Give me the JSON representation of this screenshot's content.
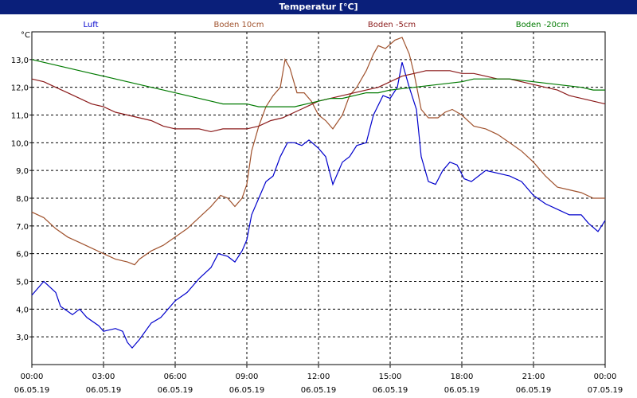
{
  "window": {
    "title": "Temperatur [°C]"
  },
  "chart_data": {
    "type": "line",
    "title": "Temperatur [°C]",
    "ylabel": "°C",
    "ylim": [
      2.0,
      14.0
    ],
    "yticks": [
      3.0,
      4.0,
      5.0,
      6.0,
      7.0,
      8.0,
      9.0,
      10.0,
      11.0,
      12.0,
      13.0
    ],
    "ytick_labels": [
      "3,0",
      "4,0",
      "5,0",
      "6,0",
      "7,0",
      "8,0",
      "9,0",
      "10,0",
      "11,0",
      "12,0",
      "13,0"
    ],
    "xlim": [
      0,
      24
    ],
    "xticks": [
      {
        "x": 0,
        "time": "00:00",
        "date": "06.05.19"
      },
      {
        "x": 3,
        "time": "03:00",
        "date": "06.05.19"
      },
      {
        "x": 6,
        "time": "06:00",
        "date": "06.05.19"
      },
      {
        "x": 9,
        "time": "09:00",
        "date": "06.05.19"
      },
      {
        "x": 12,
        "time": "12:00",
        "date": "06.05.19"
      },
      {
        "x": 15,
        "time": "15:00",
        "date": "06.05.19"
      },
      {
        "x": 18,
        "time": "18:00",
        "date": "06.05.19"
      },
      {
        "x": 21,
        "time": "21:00",
        "date": "06.05.19"
      },
      {
        "x": 24,
        "time": "00:00",
        "date": "07.05.19"
      }
    ],
    "grid": true,
    "legend_position": "top",
    "series": [
      {
        "name": "Luft",
        "color": "#0000cc",
        "points": [
          [
            0,
            4.5
          ],
          [
            0.5,
            5.0
          ],
          [
            1,
            4.6
          ],
          [
            1.2,
            4.1
          ],
          [
            1.7,
            3.8
          ],
          [
            2.0,
            4.0
          ],
          [
            2.3,
            3.7
          ],
          [
            2.8,
            3.4
          ],
          [
            3.0,
            3.2
          ],
          [
            3.5,
            3.3
          ],
          [
            3.8,
            3.2
          ],
          [
            4.0,
            2.8
          ],
          [
            4.2,
            2.6
          ],
          [
            4.5,
            2.9
          ],
          [
            5.0,
            3.5
          ],
          [
            5.4,
            3.7
          ],
          [
            6.0,
            4.3
          ],
          [
            6.5,
            4.6
          ],
          [
            7.0,
            5.1
          ],
          [
            7.5,
            5.5
          ],
          [
            7.8,
            6.0
          ],
          [
            8.2,
            5.9
          ],
          [
            8.5,
            5.7
          ],
          [
            8.8,
            6.1
          ],
          [
            9.0,
            6.5
          ],
          [
            9.2,
            7.4
          ],
          [
            9.5,
            8.0
          ],
          [
            9.8,
            8.6
          ],
          [
            10.1,
            8.8
          ],
          [
            10.4,
            9.5
          ],
          [
            10.7,
            10.0
          ],
          [
            11.0,
            10.0
          ],
          [
            11.3,
            9.9
          ],
          [
            11.6,
            10.1
          ],
          [
            12.0,
            9.8
          ],
          [
            12.3,
            9.5
          ],
          [
            12.6,
            8.5
          ],
          [
            13.0,
            9.3
          ],
          [
            13.3,
            9.5
          ],
          [
            13.6,
            9.9
          ],
          [
            14.0,
            10.0
          ],
          [
            14.3,
            11.0
          ],
          [
            14.7,
            11.7
          ],
          [
            15.0,
            11.6
          ],
          [
            15.3,
            12.0
          ],
          [
            15.5,
            12.9
          ],
          [
            15.8,
            12.0
          ],
          [
            16.1,
            11.2
          ],
          [
            16.3,
            9.5
          ],
          [
            16.6,
            8.6
          ],
          [
            16.9,
            8.5
          ],
          [
            17.2,
            9.0
          ],
          [
            17.5,
            9.3
          ],
          [
            17.8,
            9.2
          ],
          [
            18.1,
            8.7
          ],
          [
            18.4,
            8.6
          ],
          [
            18.7,
            8.8
          ],
          [
            19.0,
            9.0
          ],
          [
            19.5,
            8.9
          ],
          [
            20.0,
            8.8
          ],
          [
            20.5,
            8.6
          ],
          [
            21.0,
            8.1
          ],
          [
            21.5,
            7.8
          ],
          [
            22.0,
            7.6
          ],
          [
            22.5,
            7.4
          ],
          [
            23.0,
            7.4
          ],
          [
            23.3,
            7.1
          ],
          [
            23.7,
            6.8
          ],
          [
            24.0,
            7.2
          ]
        ]
      },
      {
        "name": "Boden 10cm",
        "color": "#a0522d",
        "points": [
          [
            0,
            7.5
          ],
          [
            0.5,
            7.3
          ],
          [
            1.0,
            6.9
          ],
          [
            1.5,
            6.6
          ],
          [
            2.0,
            6.4
          ],
          [
            2.5,
            6.2
          ],
          [
            3.0,
            6.0
          ],
          [
            3.5,
            5.8
          ],
          [
            4.0,
            5.7
          ],
          [
            4.3,
            5.6
          ],
          [
            4.5,
            5.8
          ],
          [
            5.0,
            6.1
          ],
          [
            5.5,
            6.3
          ],
          [
            6.0,
            6.6
          ],
          [
            6.5,
            6.9
          ],
          [
            7.0,
            7.3
          ],
          [
            7.5,
            7.7
          ],
          [
            7.9,
            8.1
          ],
          [
            8.2,
            8.0
          ],
          [
            8.5,
            7.7
          ],
          [
            8.8,
            8.0
          ],
          [
            9.0,
            8.5
          ],
          [
            9.2,
            9.7
          ],
          [
            9.5,
            10.6
          ],
          [
            9.8,
            11.3
          ],
          [
            10.1,
            11.7
          ],
          [
            10.4,
            12.0
          ],
          [
            10.6,
            13.0
          ],
          [
            10.8,
            12.7
          ],
          [
            11.1,
            11.8
          ],
          [
            11.4,
            11.8
          ],
          [
            11.7,
            11.5
          ],
          [
            12.0,
            11.0
          ],
          [
            12.3,
            10.8
          ],
          [
            12.6,
            10.5
          ],
          [
            13.0,
            11.0
          ],
          [
            13.3,
            11.7
          ],
          [
            13.6,
            12.0
          ],
          [
            14.0,
            12.6
          ],
          [
            14.3,
            13.2
          ],
          [
            14.5,
            13.5
          ],
          [
            14.8,
            13.4
          ],
          [
            15.2,
            13.7
          ],
          [
            15.5,
            13.8
          ],
          [
            15.8,
            13.2
          ],
          [
            16.0,
            12.5
          ],
          [
            16.3,
            11.2
          ],
          [
            16.6,
            10.9
          ],
          [
            17.0,
            10.9
          ],
          [
            17.3,
            11.1
          ],
          [
            17.6,
            11.2
          ],
          [
            18.0,
            11.0
          ],
          [
            18.5,
            10.6
          ],
          [
            19.0,
            10.5
          ],
          [
            19.5,
            10.3
          ],
          [
            20.0,
            10.0
          ],
          [
            20.5,
            9.7
          ],
          [
            21.0,
            9.3
          ],
          [
            21.5,
            8.8
          ],
          [
            22.0,
            8.4
          ],
          [
            22.5,
            8.3
          ],
          [
            23.0,
            8.2
          ],
          [
            23.5,
            8.0
          ],
          [
            24.0,
            8.0
          ]
        ]
      },
      {
        "name": "Boden -5cm",
        "color": "#8b1a1a",
        "points": [
          [
            0,
            12.3
          ],
          [
            0.5,
            12.2
          ],
          [
            1.0,
            12.0
          ],
          [
            1.5,
            11.8
          ],
          [
            2.0,
            11.6
          ],
          [
            2.5,
            11.4
          ],
          [
            3.0,
            11.3
          ],
          [
            3.5,
            11.1
          ],
          [
            4.0,
            11.0
          ],
          [
            4.5,
            10.9
          ],
          [
            5.0,
            10.8
          ],
          [
            5.5,
            10.6
          ],
          [
            6.0,
            10.5
          ],
          [
            7.0,
            10.5
          ],
          [
            7.5,
            10.4
          ],
          [
            8.0,
            10.5
          ],
          [
            9.0,
            10.5
          ],
          [
            9.5,
            10.6
          ],
          [
            10.0,
            10.8
          ],
          [
            10.5,
            10.9
          ],
          [
            11.0,
            11.1
          ],
          [
            11.5,
            11.3
          ],
          [
            12.0,
            11.5
          ],
          [
            12.5,
            11.6
          ],
          [
            13.0,
            11.7
          ],
          [
            13.5,
            11.8
          ],
          [
            14.0,
            11.9
          ],
          [
            14.5,
            12.0
          ],
          [
            15.0,
            12.2
          ],
          [
            15.5,
            12.4
          ],
          [
            16.0,
            12.5
          ],
          [
            16.5,
            12.6
          ],
          [
            17.0,
            12.6
          ],
          [
            17.5,
            12.6
          ],
          [
            18.0,
            12.5
          ],
          [
            18.5,
            12.5
          ],
          [
            19.0,
            12.4
          ],
          [
            19.5,
            12.3
          ],
          [
            20.0,
            12.3
          ],
          [
            20.5,
            12.2
          ],
          [
            21.0,
            12.1
          ],
          [
            21.5,
            12.0
          ],
          [
            22.0,
            11.9
          ],
          [
            22.5,
            11.7
          ],
          [
            23.0,
            11.6
          ],
          [
            23.5,
            11.5
          ],
          [
            24.0,
            11.4
          ]
        ]
      },
      {
        "name": "Boden -20cm",
        "color": "#007a00",
        "points": [
          [
            0,
            13.0
          ],
          [
            0.5,
            12.9
          ],
          [
            1.0,
            12.8
          ],
          [
            1.5,
            12.7
          ],
          [
            2.0,
            12.6
          ],
          [
            2.5,
            12.5
          ],
          [
            3.0,
            12.4
          ],
          [
            3.5,
            12.3
          ],
          [
            4.0,
            12.2
          ],
          [
            4.5,
            12.1
          ],
          [
            5.0,
            12.0
          ],
          [
            5.5,
            11.9
          ],
          [
            6.0,
            11.8
          ],
          [
            6.5,
            11.7
          ],
          [
            7.0,
            11.6
          ],
          [
            7.5,
            11.5
          ],
          [
            8.0,
            11.4
          ],
          [
            8.5,
            11.4
          ],
          [
            9.0,
            11.4
          ],
          [
            9.5,
            11.3
          ],
          [
            10.0,
            11.3
          ],
          [
            11.0,
            11.3
          ],
          [
            11.5,
            11.4
          ],
          [
            12.0,
            11.5
          ],
          [
            12.5,
            11.6
          ],
          [
            13.0,
            11.6
          ],
          [
            13.5,
            11.7
          ],
          [
            14.0,
            11.8
          ],
          [
            14.5,
            11.8
          ],
          [
            15.0,
            11.9
          ],
          [
            16.0,
            12.0
          ],
          [
            17.0,
            12.1
          ],
          [
            18.0,
            12.2
          ],
          [
            18.5,
            12.3
          ],
          [
            19.0,
            12.3
          ],
          [
            20.0,
            12.3
          ],
          [
            21.0,
            12.2
          ],
          [
            22.0,
            12.1
          ],
          [
            23.0,
            12.0
          ],
          [
            23.5,
            11.9
          ],
          [
            24.0,
            11.9
          ]
        ]
      }
    ]
  }
}
